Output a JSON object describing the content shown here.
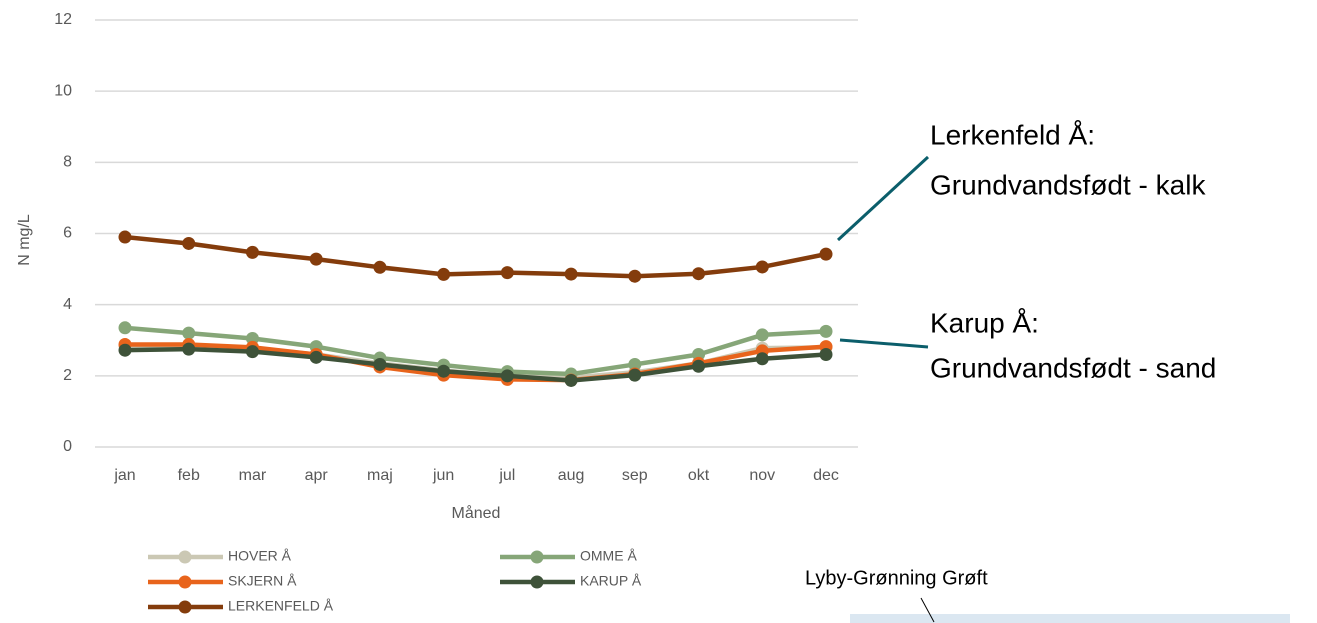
{
  "chart_data": {
    "type": "line",
    "x_label": "Måned",
    "y_label": "N mg/L",
    "categories": [
      "jan",
      "feb",
      "mar",
      "apr",
      "maj",
      "jun",
      "jul",
      "aug",
      "sep",
      "okt",
      "nov",
      "dec"
    ],
    "series": [
      {
        "name": "HOVER Å",
        "color": "#cbc8b4",
        "values": [
          2.85,
          2.85,
          2.78,
          2.6,
          2.35,
          2.15,
          2.0,
          1.95,
          2.1,
          2.35,
          2.78,
          2.8
        ]
      },
      {
        "name": "OMME Å",
        "color": "#86a678",
        "values": [
          3.35,
          3.2,
          3.05,
          2.82,
          2.5,
          2.3,
          2.12,
          2.05,
          2.32,
          2.6,
          3.15,
          3.25
        ]
      },
      {
        "name": "SKJERN Å",
        "color": "#e8641c",
        "values": [
          2.88,
          2.88,
          2.8,
          2.6,
          2.25,
          2.02,
          1.9,
          1.88,
          2.05,
          2.35,
          2.7,
          2.82
        ]
      },
      {
        "name": "KARUP Å",
        "color": "#3e5239",
        "values": [
          2.72,
          2.75,
          2.68,
          2.52,
          2.32,
          2.13,
          2.0,
          1.87,
          2.02,
          2.27,
          2.48,
          2.6
        ]
      },
      {
        "name": "LERKENFELD Å",
        "color": "#843c0c",
        "values": [
          5.9,
          5.72,
          5.47,
          5.28,
          5.05,
          4.85,
          4.9,
          4.86,
          4.8,
          4.87,
          5.06,
          5.42
        ]
      }
    ],
    "ylim": [
      0,
      12
    ],
    "yticks": [
      0,
      2,
      4,
      6,
      8,
      10,
      12
    ],
    "grid": true,
    "annotations": [
      {
        "lines": [
          "Lerkenfeld Å:",
          "Grundvandsfødt - kalk"
        ],
        "color": "#0b5e6b"
      },
      {
        "lines": [
          "Karup Å:",
          "Grundvandsfødt - sand"
        ],
        "color": "#0b5e6b"
      },
      {
        "lines": [
          "Lyby-Grønning Grøft"
        ],
        "color": "#000000"
      }
    ]
  }
}
